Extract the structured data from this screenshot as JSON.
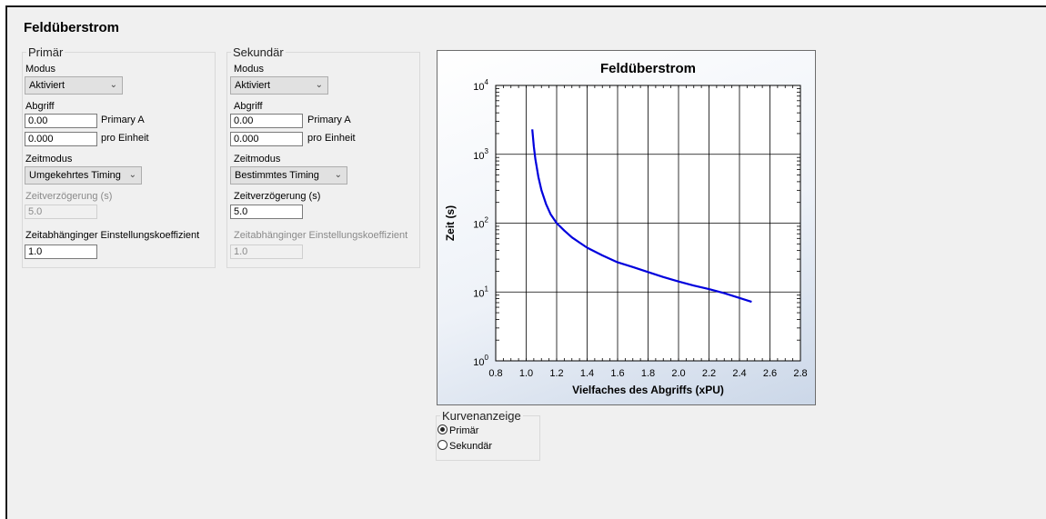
{
  "page": {
    "title": "Feldüberstrom"
  },
  "primary": {
    "legend": "Primär",
    "mode_label": "Modus",
    "mode_value": "Aktiviert",
    "tap_label": "Abgriff",
    "tap_amps_value": "0.00",
    "tap_amps_unit": "Primary A",
    "tap_pu_value": "0.000",
    "tap_pu_unit": "pro Einheit",
    "time_mode_label": "Zeitmodus",
    "time_mode_value": "Umgekehrtes Timing",
    "delay_label": "Zeitverzögerung (s)",
    "delay_value": "5.0",
    "coef_label": "Zeitabhänginger Einstellungskoeffizient",
    "coef_value": "1.0"
  },
  "secondary": {
    "legend": "Sekundär",
    "mode_label": "Modus",
    "mode_value": "Aktiviert",
    "tap_label": "Abgriff",
    "tap_amps_value": "0.00",
    "tap_amps_unit": "Primary A",
    "tap_pu_value": "0.000",
    "tap_pu_unit": "pro Einheit",
    "time_mode_label": "Zeitmodus",
    "time_mode_value": "Bestimmtes Timing",
    "delay_label": "Zeitverzögerung (s)",
    "delay_value": "5.0",
    "coef_label": "Zeitabhänginger Einstellungskoeffizient",
    "coef_value": "1.0"
  },
  "curve_display": {
    "legend": "Kurvenanzeige",
    "options": [
      {
        "label": "Primär",
        "selected": true
      },
      {
        "label": "Sekundär",
        "selected": false
      }
    ]
  },
  "chart_data": {
    "type": "line",
    "title": "Feldüberstrom",
    "xlabel": "Vielfaches des Abgriffs (xPU)",
    "ylabel": "Zeit (s)",
    "xlim": [
      0.8,
      2.8
    ],
    "ylim": [
      1,
      10000
    ],
    "y_scale": "log",
    "x_ticks": [
      "0.8",
      "1.0",
      "1.2",
      "1.4",
      "1.6",
      "1.8",
      "2.0",
      "2.2",
      "2.4",
      "2.6",
      "2.8"
    ],
    "x_tick_values": [
      0.8,
      1.0,
      1.2,
      1.4,
      1.6,
      1.8,
      2.0,
      2.2,
      2.4,
      2.6,
      2.8
    ],
    "y_tick_exponents": [
      "0",
      "1",
      "2",
      "3",
      "4"
    ],
    "y_tick_values": [
      1,
      10,
      100,
      1000,
      10000
    ],
    "grid": true,
    "line_color": "#0000dd",
    "x": [
      1.04,
      1.05,
      1.06,
      1.08,
      1.1,
      1.13,
      1.16,
      1.2,
      1.25,
      1.3,
      1.4,
      1.5,
      1.6,
      1.7,
      1.8,
      1.9,
      2.0,
      2.1,
      2.2,
      2.3,
      2.4,
      2.48
    ],
    "y": [
      2300,
      1300,
      850,
      470,
      300,
      190,
      135,
      100,
      78,
      62,
      44,
      34,
      27,
      23,
      19.5,
      16.5,
      14.2,
      12.4,
      11,
      9.6,
      8.2,
      7.2
    ]
  }
}
